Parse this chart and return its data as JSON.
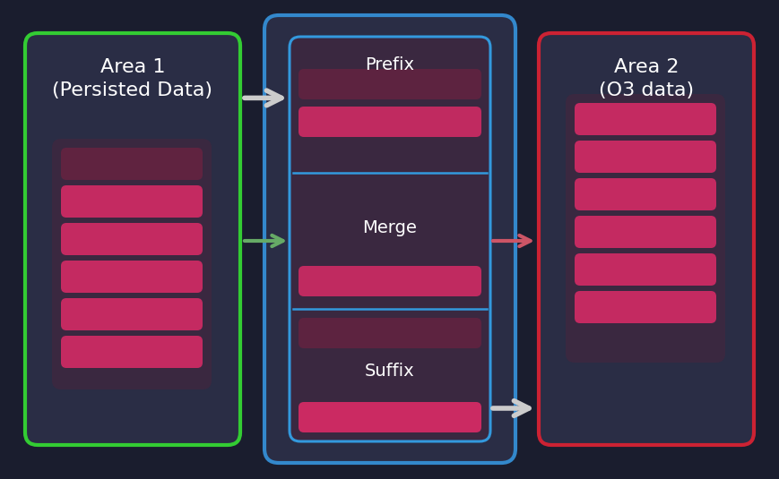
{
  "bg_color": "#1a1d2e",
  "panel_bg": "#2a2d45",
  "bar_color": "#d42b65",
  "bar_dim_color": "#7a2040",
  "inner_panel_bg": "#3a2840",
  "area1_border": "#33cc33",
  "area2_border": "#cc2233",
  "center_outer_border": "#3388cc",
  "center_inner_border": "#3399dd",
  "text_color": "#ffffff",
  "area1_label": "Area 1\n(Persisted Data)",
  "area2_label": "Area 2\n(O3 data)",
  "prefix_label": "Prefix",
  "merge_label": "Merge",
  "suffix_label": "Suffix",
  "label_fontsize": 16,
  "section_fontsize": 14,
  "arrow_white": "#cccccc",
  "arrow_green": "#66aa66",
  "arrow_red": "#cc5566"
}
